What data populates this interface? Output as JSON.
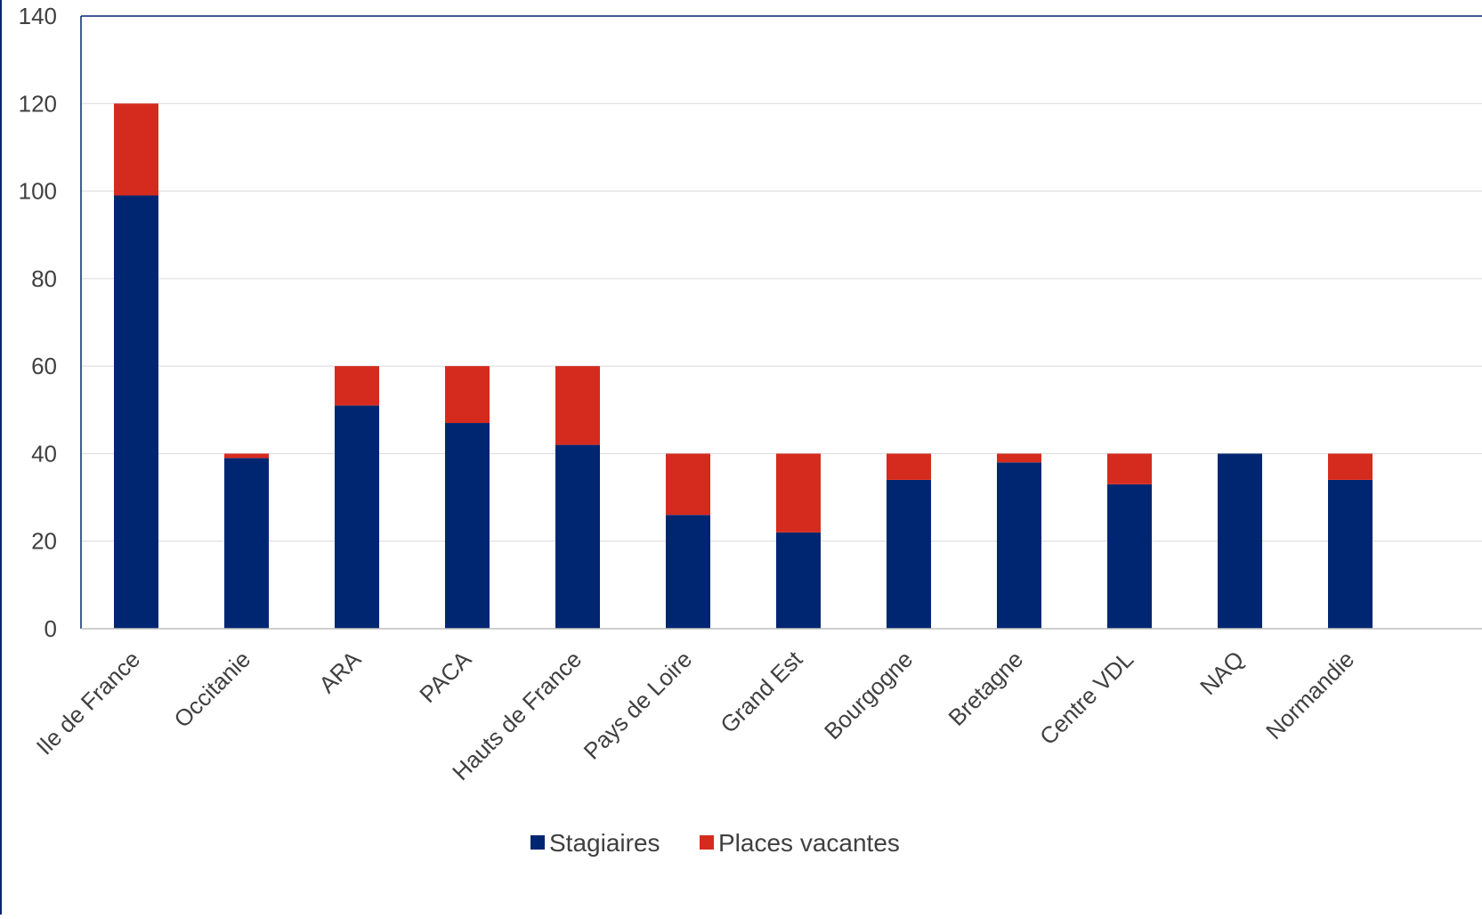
{
  "chart_data": {
    "type": "bar",
    "stacked": true,
    "title": "",
    "xlabel": "",
    "ylabel": "",
    "ylim": [
      0,
      140
    ],
    "yticks": [
      0,
      20,
      40,
      60,
      80,
      100,
      120,
      140
    ],
    "grid": true,
    "legend_position": "bottom",
    "categories": [
      "Ile de France",
      "Occitanie",
      "ARA",
      "PACA",
      "Hauts de France",
      "Pays de Loire",
      "Grand Est",
      "Bourgogne",
      "Bretagne",
      "Centre VDL",
      "NAQ",
      "Normandie"
    ],
    "series": [
      {
        "name": "Stagiaires",
        "color": "#002671",
        "values": [
          99,
          39,
          51,
          47,
          42,
          26,
          22,
          34,
          38,
          33,
          40,
          34
        ]
      },
      {
        "name": "Places vacantes",
        "color": "#D52B1E",
        "values": [
          21,
          1,
          9,
          13,
          18,
          14,
          18,
          6,
          2,
          7,
          0,
          6
        ]
      }
    ]
  }
}
